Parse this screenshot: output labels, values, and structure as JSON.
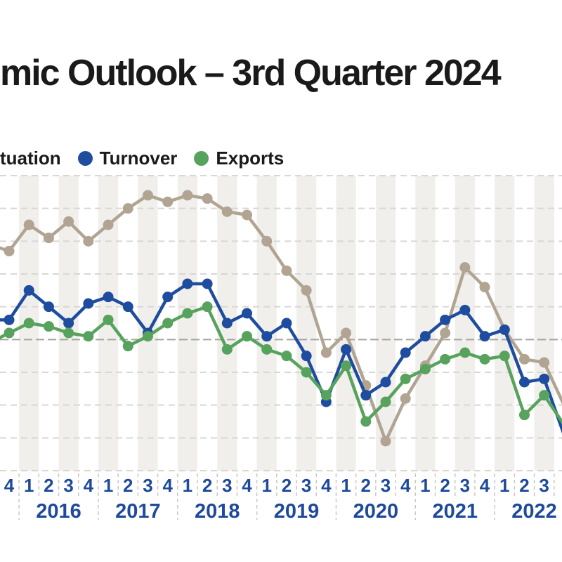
{
  "title": "mic Outlook – 3rd Quarter 2024",
  "legend": [
    {
      "label": "tuation",
      "color": null
    },
    {
      "label": "Turnover",
      "color": "#1e4c9e"
    },
    {
      "label": "Exports",
      "color": "#57a25c"
    }
  ],
  "colors": {
    "situation": "#b1a492",
    "turnover": "#1e4c9e",
    "exports": "#57a25c",
    "band": "#f0efec",
    "grid": "#d8d7d3",
    "zero_line": "#a5a39d",
    "separator": "#c9c8c4",
    "axis_text": "#1f4a9c",
    "title_text": "#1a1a1a"
  },
  "chart_data": {
    "type": "line",
    "title": "mic Outlook – 3rd Quarter 2024",
    "ylim": [
      -40,
      50
    ],
    "gridline_step": 10,
    "grid": "dashed-horizontal",
    "zero_line_emphasized": true,
    "alternating_bands": "quarters Q1 and Q3 shaded",
    "legend_position": "top-left",
    "edge_points_offscreen": [
      "2015-Q3",
      "2022-Q4"
    ],
    "categories": [
      "2015-Q3",
      "2015-Q4",
      "2016-Q1",
      "2016-Q2",
      "2016-Q3",
      "2016-Q4",
      "2017-Q1",
      "2017-Q2",
      "2017-Q3",
      "2017-Q4",
      "2018-Q1",
      "2018-Q2",
      "2018-Q3",
      "2018-Q4",
      "2019-Q1",
      "2019-Q2",
      "2019-Q3",
      "2019-Q4",
      "2020-Q1",
      "2020-Q2",
      "2020-Q3",
      "2020-Q4",
      "2021-Q1",
      "2021-Q2",
      "2021-Q3",
      "2021-Q4",
      "2022-Q1",
      "2022-Q2",
      "2022-Q3",
      "2022-Q4"
    ],
    "years": [
      "2016",
      "2017",
      "2018",
      "2019",
      "2020",
      "2021",
      "2022"
    ],
    "series": [
      {
        "name": "Situation",
        "legend_label_visible": "tuation",
        "color": "#b1a492",
        "values": [
          29,
          27,
          35,
          31,
          36,
          30,
          35,
          40,
          44,
          42,
          44,
          43,
          39,
          38,
          30,
          21,
          15,
          -4,
          2,
          -14,
          -31,
          -18,
          -8,
          2,
          22,
          16,
          3,
          -6,
          -7,
          -20
        ]
      },
      {
        "name": "Turnover",
        "legend_label_visible": "Turnover",
        "color": "#1e4c9e",
        "values": [
          6,
          6,
          15,
          10,
          5,
          11,
          13,
          10,
          2,
          13,
          17,
          17,
          5,
          8,
          1,
          5,
          -5,
          -19,
          -3,
          -17,
          -13,
          -4,
          1,
          6,
          9,
          1,
          3,
          -13,
          -12,
          -29
        ]
      },
      {
        "name": "Exports",
        "legend_label_visible": "Exports",
        "color": "#57a25c",
        "values": [
          -1,
          2,
          5,
          4,
          2,
          1,
          6,
          -2,
          1,
          5,
          8,
          10,
          -3,
          1,
          -3,
          -5,
          -10,
          -17,
          -8,
          -25,
          -19,
          -12,
          -9,
          -6,
          -4,
          -6,
          -5,
          -23,
          -17,
          -26
        ]
      }
    ]
  }
}
